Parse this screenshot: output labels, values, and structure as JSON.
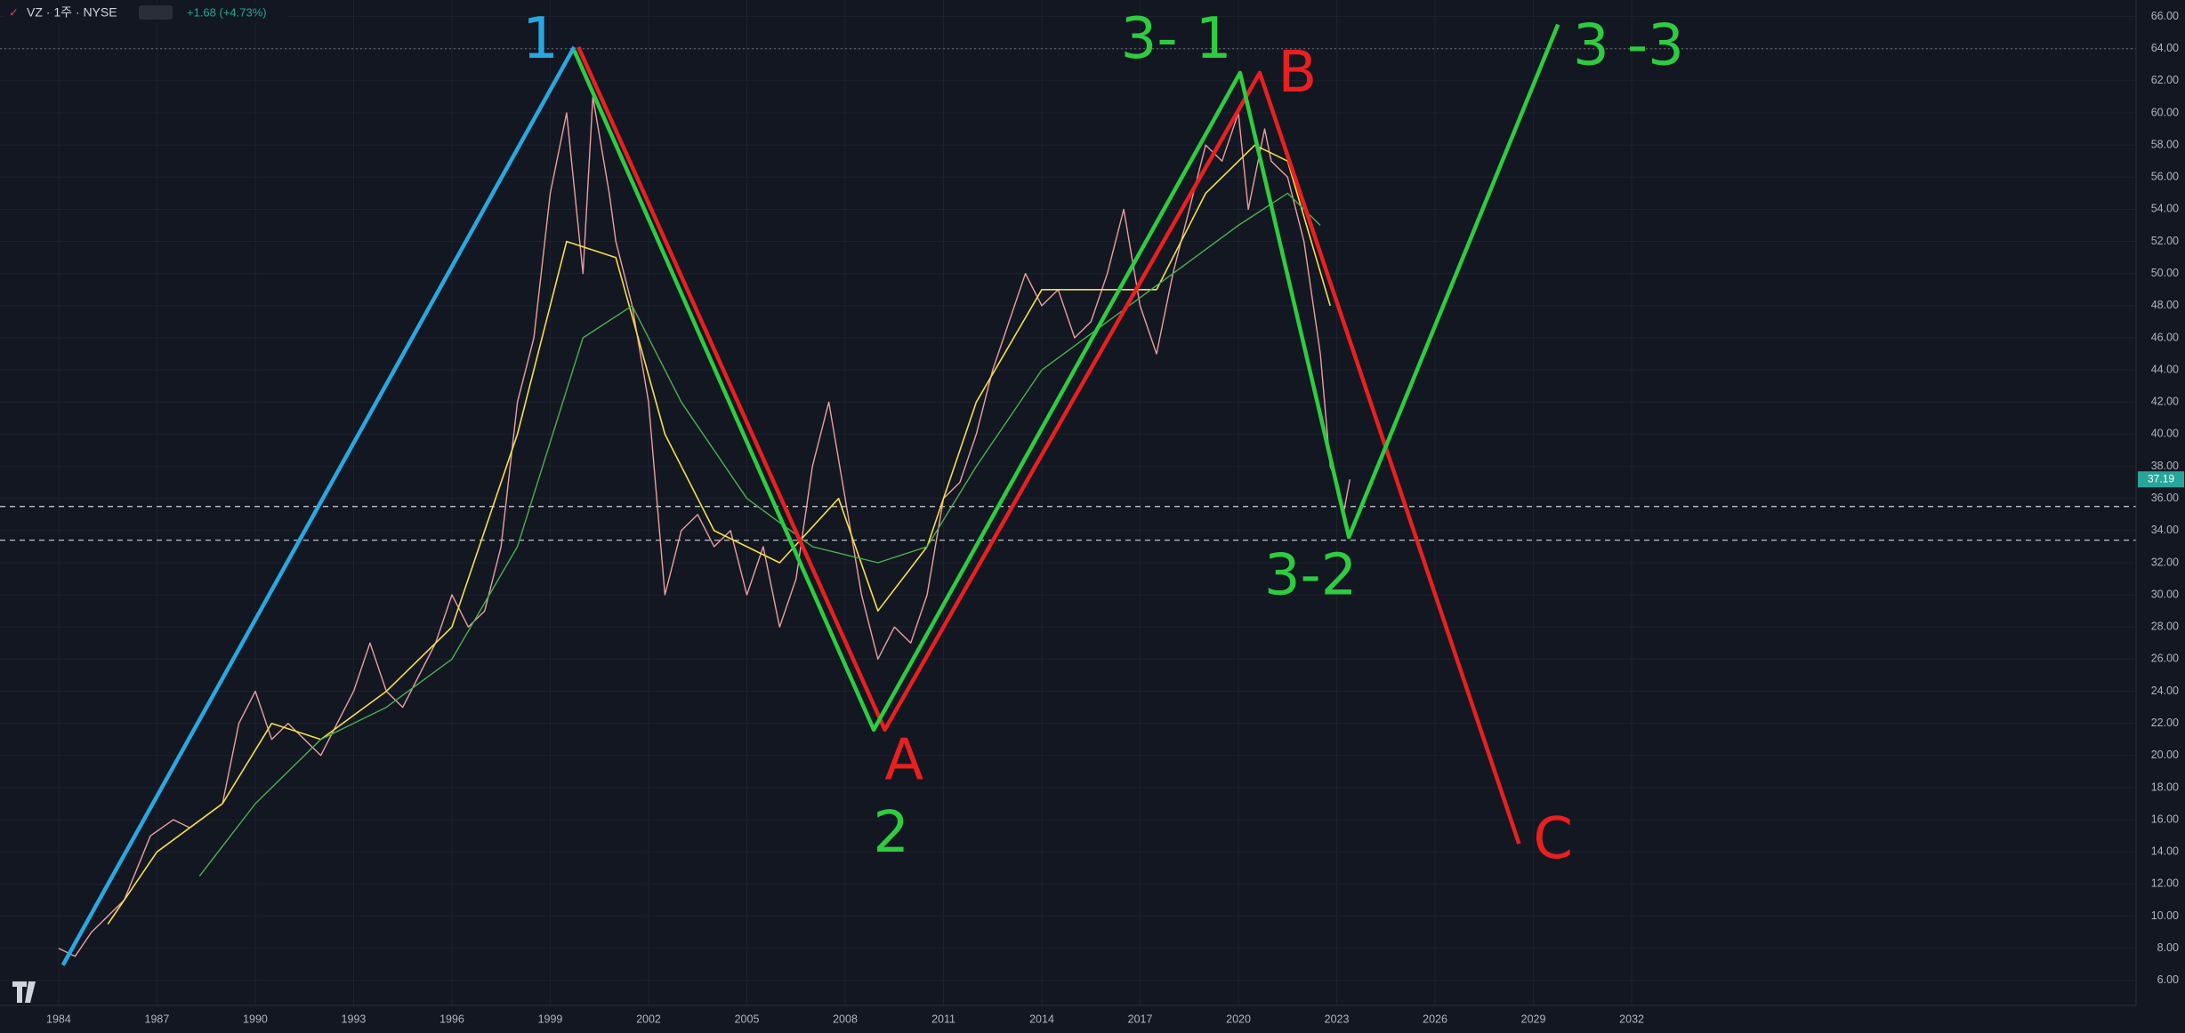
{
  "chart_data": {
    "type": "line",
    "title": "VZ · 1주 · NYSE",
    "change": "+1.68 (+4.73%)",
    "xlim": [
      1982.21,
      2047.39
    ],
    "ylim": [
      4.44,
      67.03
    ],
    "xticks": [
      1984,
      1987,
      1990,
      1993,
      1996,
      1999,
      2002,
      2005,
      2008,
      2011,
      2014,
      2017,
      2020,
      2023,
      2026,
      2029,
      2032
    ],
    "yticks": [
      {
        "value": 6,
        "label": "6.00"
      },
      {
        "value": 8,
        "label": "8.00"
      },
      {
        "value": 10,
        "label": "10.00"
      },
      {
        "value": 12,
        "label": "12.00"
      },
      {
        "value": 14,
        "label": "14.00"
      },
      {
        "value": 16,
        "label": "16.00"
      },
      {
        "value": 18,
        "label": "18.00"
      },
      {
        "value": 20,
        "label": "20.00"
      },
      {
        "value": 22,
        "label": "22.00"
      },
      {
        "value": 24,
        "label": "24.00"
      },
      {
        "value": 26,
        "label": "26.00"
      },
      {
        "value": 28,
        "label": "28.00"
      },
      {
        "value": 30,
        "label": "30.00"
      },
      {
        "value": 32,
        "label": "32.00"
      },
      {
        "value": 34,
        "label": "34.00"
      },
      {
        "value": 36,
        "label": "36.00"
      },
      {
        "value": 38,
        "label": "38.00"
      },
      {
        "value": 40,
        "label": "40.00"
      },
      {
        "value": 42,
        "label": "42.00"
      },
      {
        "value": 44,
        "label": "44.00"
      },
      {
        "value": 46,
        "label": "46.00"
      },
      {
        "value": 48,
        "label": "48.00"
      },
      {
        "value": 50,
        "label": "50.00"
      },
      {
        "value": 52,
        "label": "52.00"
      },
      {
        "value": 54,
        "label": "54.00"
      },
      {
        "value": 56,
        "label": "56.00"
      },
      {
        "value": 58,
        "label": "58.00"
      },
      {
        "value": 60,
        "label": "60.00"
      },
      {
        "value": 62,
        "label": "62.00"
      },
      {
        "value": 64,
        "label": "64.00"
      },
      {
        "value": 66,
        "label": "66.00"
      }
    ],
    "grid": true,
    "last_price": 37.19,
    "hlines": [
      {
        "value": 64,
        "style": "dotted"
      },
      {
        "value": 35.5,
        "style": "dashed"
      },
      {
        "value": 33.4,
        "style": "dashed"
      }
    ],
    "series": [
      {
        "color": "#e8a0a0",
        "width": 1.4,
        "x": [
          1984.0,
          1984.5,
          1985,
          1986,
          1986.8,
          1987.5,
          1988,
          1989,
          1989.5,
          1990,
          1990.5,
          1991,
          1991.5,
          1992,
          1992.5,
          1993,
          1993.5,
          1994,
          1994.5,
          1995,
          1995.5,
          1996,
          1996.5,
          1997,
          1997.5,
          1998,
          1998.5,
          1999,
          1999.5,
          2000,
          2000.3,
          2000.8,
          2001,
          2001.5,
          2002,
          2002.5,
          2003,
          2003.5,
          2004,
          2004.5,
          2005,
          2005.5,
          2006,
          2006.5,
          2007,
          2007.5,
          2008,
          2008.5,
          2009,
          2009.5,
          2010,
          2010.5,
          2011,
          2011.5,
          2012,
          2012.5,
          2013,
          2013.5,
          2014,
          2014.5,
          2015,
          2015.5,
          2016,
          2016.5,
          2017,
          2017.5,
          2018,
          2018.5,
          2019,
          2019.5,
          2020,
          2020.3,
          2020.8,
          2021,
          2021.5,
          2022,
          2022.5,
          2022.8,
          2023,
          2023.2,
          2023.4
        ],
        "values": [
          8,
          7.5,
          9,
          11,
          15,
          16,
          15.5,
          17,
          22,
          24,
          21,
          22,
          21,
          20,
          22,
          24,
          27,
          24,
          23,
          25,
          27,
          30,
          28,
          29,
          33,
          42,
          46,
          55,
          60,
          50,
          61,
          55,
          52,
          48,
          42,
          30,
          34,
          35,
          33,
          34,
          30,
          33,
          28,
          31,
          38,
          42,
          36,
          30,
          26,
          28,
          27,
          30,
          36,
          37,
          40,
          44,
          47,
          50,
          48,
          49,
          46,
          47,
          50,
          54,
          48,
          45,
          50,
          54,
          58,
          57,
          60,
          54,
          59,
          57,
          56,
          52,
          45,
          38,
          37,
          35,
          37.19
        ]
      },
      {
        "color": "#f5e042",
        "width": 1.6,
        "x": [
          1985.5,
          1987,
          1989,
          1990.5,
          1992,
          1994,
          1996,
          1998,
          1999.5,
          2001,
          2002.5,
          2004,
          2006,
          2007.8,
          2009,
          2010.5,
          2012,
          2014,
          2016,
          2017.5,
          2019,
          2020.5,
          2021.5,
          2022.8
        ],
        "values": [
          9.5,
          14,
          17,
          22,
          21,
          24,
          28,
          40,
          52,
          51,
          40,
          34,
          32,
          36,
          29,
          33,
          42,
          49,
          49,
          49,
          55,
          58,
          57,
          48
        ]
      },
      {
        "color": "#4caf50",
        "width": 1.4,
        "x": [
          1988.3,
          1990,
          1992,
          1994,
          1996,
          1998,
          2000,
          2001.5,
          2003,
          2005,
          2007,
          2009,
          2010.5,
          2012,
          2014,
          2016,
          2018,
          2020,
          2021.5,
          2022.5
        ],
        "values": [
          12.5,
          17,
          21,
          23,
          26,
          33,
          46,
          48,
          42,
          36,
          33,
          32,
          33,
          38,
          44,
          47,
          50,
          53,
          55,
          53
        ]
      }
    ],
    "lines": [
      {
        "color": "#29a8e0",
        "x": [
          1984.13,
          1999.73
        ],
        "y": [
          6.95,
          64.1
        ]
      },
      {
        "color": "#e82020",
        "x": [
          1999.86,
          2009.21,
          2020.65,
          2028.56
        ],
        "y": [
          64.1,
          21.6,
          62.5,
          14.5
        ]
      },
      {
        "color": "#2ecc40",
        "x": [
          1999.73,
          2008.87,
          2020.05,
          2023.37,
          2029.75
        ],
        "y": [
          63.9,
          21.6,
          62.5,
          33.6,
          65.5
        ]
      }
    ],
    "labels": [
      {
        "text": "1",
        "color": "#29a8e0",
        "x": 1998.7,
        "y": 64.4
      },
      {
        "text": "2",
        "color": "#2ecc40",
        "x": 2009.4,
        "y": 15.0
      },
      {
        "text": "3- 1",
        "color": "#2ecc40",
        "x": 2018.1,
        "y": 64.4
      },
      {
        "text": "B",
        "color": "#e82020",
        "x": 2021.8,
        "y": 62.3
      },
      {
        "text": "A",
        "color": "#e82020",
        "x": 2009.8,
        "y": 19.5
      },
      {
        "text": "3-2",
        "color": "#2ecc40",
        "x": 2022.2,
        "y": 31.0
      },
      {
        "text": "3 -3",
        "color": "#2ecc40",
        "x": 2031.9,
        "y": 64.0
      },
      {
        "text": "C",
        "color": "#e82020",
        "x": 2029.6,
        "y": 14.6
      }
    ]
  }
}
